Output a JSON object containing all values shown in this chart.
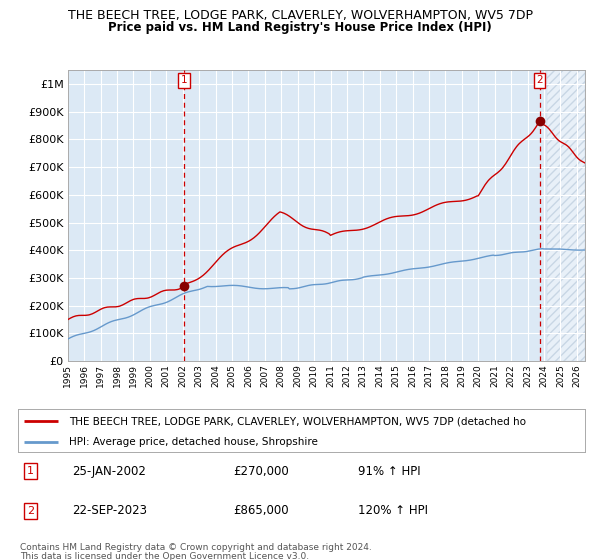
{
  "title": "THE BEECH TREE, LODGE PARK, CLAVERLEY, WOLVERHAMPTON, WV5 7DP",
  "subtitle": "Price paid vs. HM Land Registry's House Price Index (HPI)",
  "ylim": [
    0,
    1050000
  ],
  "yticks": [
    0,
    100000,
    200000,
    300000,
    400000,
    500000,
    600000,
    700000,
    800000,
    900000,
    1000000
  ],
  "ytick_labels": [
    "£0",
    "£100K",
    "£200K",
    "£300K",
    "£400K",
    "£500K",
    "£600K",
    "£700K",
    "£800K",
    "£900K",
    "£1M"
  ],
  "x_start_year": 1995,
  "x_end_year": 2026,
  "background_color": "#dce9f5",
  "hatch_color": "#c0d0e0",
  "grid_color": "#ffffff",
  "red_line_color": "#cc0000",
  "blue_line_color": "#6699cc",
  "marker_color": "#880000",
  "dashed_color": "#cc0000",
  "sale1_year": 2002.07,
  "sale1_price": 270000,
  "sale2_year": 2023.73,
  "sale2_price": 865000,
  "legend_line1": "THE BEECH TREE, LODGE PARK, CLAVERLEY, WOLVERHAMPTON, WV5 7DP (detached ho",
  "legend_line2": "HPI: Average price, detached house, Shropshire",
  "annotation1_label": "1",
  "annotation1_date": "25-JAN-2002",
  "annotation1_price": "£270,000",
  "annotation1_hpi": "91% ↑ HPI",
  "annotation2_label": "2",
  "annotation2_date": "22-SEP-2023",
  "annotation2_price": "£865,000",
  "annotation2_hpi": "120% ↑ HPI",
  "footer1": "Contains HM Land Registry data © Crown copyright and database right 2024.",
  "footer2": "This data is licensed under the Open Government Licence v3.0."
}
